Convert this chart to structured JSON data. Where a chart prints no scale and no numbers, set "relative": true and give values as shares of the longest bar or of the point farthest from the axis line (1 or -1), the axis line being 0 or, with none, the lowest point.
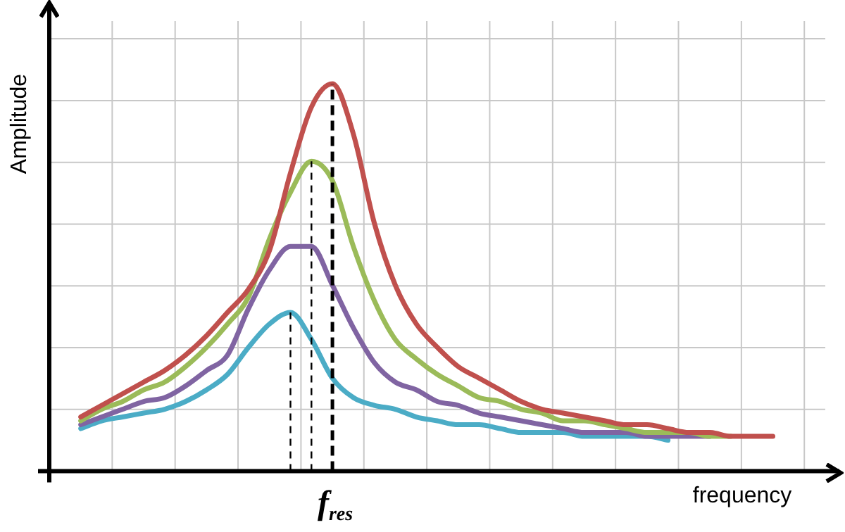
{
  "chart_data": {
    "type": "line",
    "relative": true,
    "xlabel": "frequency",
    "ylabel": "Amplitude",
    "grid": true,
    "legend": false,
    "marker": "none",
    "line_style": "solid",
    "categories": [
      null,
      null,
      null,
      null,
      null,
      null,
      null,
      null,
      null,
      null,
      null,
      null,
      null,
      null,
      null,
      null,
      null,
      null,
      null,
      null,
      null,
      null,
      null,
      null,
      null,
      null,
      null,
      null,
      null,
      null,
      null,
      null,
      null,
      null
    ],
    "series": [
      {
        "color": "#c0504d",
        "values": [
          0.14,
          0.17,
          0.2,
          0.23,
          0.26,
          0.3,
          0.35,
          0.41,
          0.47,
          0.57,
          0.77,
          0.94,
          1,
          0.87,
          0.64,
          0.48,
          0.38,
          0.32,
          0.27,
          0.24,
          0.21,
          0.18,
          0.16,
          0.15,
          0.14,
          0.13,
          0.12,
          0.12,
          0.11,
          0.1,
          0.1,
          0.09,
          0.09,
          0.09
        ]
      },
      {
        "color": "#9bbb59",
        "values": [
          0.13,
          0.16,
          0.18,
          0.21,
          0.23,
          0.27,
          0.32,
          0.38,
          0.45,
          0.6,
          0.72,
          0.8,
          0.75,
          0.58,
          0.44,
          0.34,
          0.29,
          0.25,
          0.22,
          0.19,
          0.18,
          0.16,
          0.15,
          0.13,
          0.13,
          0.12,
          0.11,
          0.1,
          0.1,
          0.1,
          0.09,
          0.09,
          null,
          null
        ]
      },
      {
        "color": "#8064a2",
        "values": [
          0.12,
          0.14,
          0.16,
          0.18,
          0.19,
          0.22,
          0.26,
          0.3,
          0.42,
          0.52,
          0.58,
          0.58,
          0.48,
          0.37,
          0.28,
          0.23,
          0.21,
          0.18,
          0.17,
          0.15,
          0.14,
          0.13,
          0.12,
          0.11,
          0.1,
          0.1,
          0.1,
          0.09,
          0.09,
          0.09,
          0.09,
          null,
          null,
          null
        ]
      },
      {
        "color": "#4bacc6",
        "values": [
          0.11,
          0.13,
          0.14,
          0.15,
          0.16,
          0.18,
          0.21,
          0.25,
          0.32,
          0.38,
          0.41,
          0.34,
          0.24,
          0.19,
          0.17,
          0.16,
          0.14,
          0.13,
          0.12,
          0.12,
          0.11,
          0.1,
          0.1,
          0.1,
          0.09,
          0.09,
          0.09,
          0.09,
          0.08,
          null,
          null,
          null,
          null,
          null
        ]
      }
    ],
    "annotations": [
      "f$_{res}$"
    ]
  }
}
